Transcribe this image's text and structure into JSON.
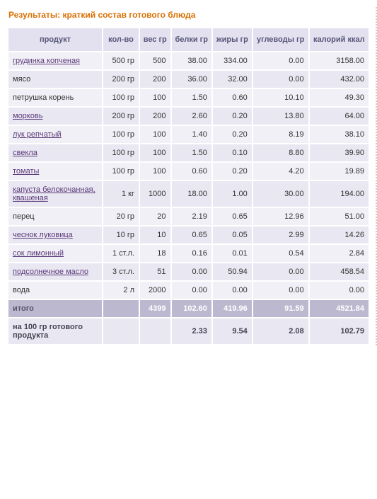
{
  "title": "Результаты: краткий состав готового блюда",
  "columns": {
    "product": "продукт",
    "qty": "кол-во",
    "weight": "вес гр",
    "protein": "белки гр",
    "fat": "жиры гр",
    "carbs": "углеводы гр",
    "kcal": "калорий ккал"
  },
  "rows": [
    {
      "name": "грудинка копченая",
      "link": true,
      "qty": "500 гр",
      "weight": "500",
      "protein": "38.00",
      "fat": "334.00",
      "carbs": "0.00",
      "kcal": "3158.00"
    },
    {
      "name": "мясо",
      "link": false,
      "qty": "200 гр",
      "weight": "200",
      "protein": "36.00",
      "fat": "32.00",
      "carbs": "0.00",
      "kcal": "432.00"
    },
    {
      "name": "петрушка корень",
      "link": false,
      "qty": "100 гр",
      "weight": "100",
      "protein": "1.50",
      "fat": "0.60",
      "carbs": "10.10",
      "kcal": "49.30"
    },
    {
      "name": "морковь",
      "link": true,
      "qty": "200 гр",
      "weight": "200",
      "protein": "2.60",
      "fat": "0.20",
      "carbs": "13.80",
      "kcal": "64.00"
    },
    {
      "name": "лук репчатый",
      "link": true,
      "qty": "100 гр",
      "weight": "100",
      "protein": "1.40",
      "fat": "0.20",
      "carbs": "8.19",
      "kcal": "38.10"
    },
    {
      "name": "свекла",
      "link": true,
      "qty": "100 гр",
      "weight": "100",
      "protein": "1.50",
      "fat": "0.10",
      "carbs": "8.80",
      "kcal": "39.90"
    },
    {
      "name": "томаты",
      "link": true,
      "qty": "100 гр",
      "weight": "100",
      "protein": "0.60",
      "fat": "0.20",
      "carbs": "4.20",
      "kcal": "19.89"
    },
    {
      "name": "капуста белокочанная, квашеная",
      "link": true,
      "qty": "1 кг",
      "weight": "1000",
      "protein": "18.00",
      "fat": "1.00",
      "carbs": "30.00",
      "kcal": "194.00"
    },
    {
      "name": "перец",
      "link": false,
      "qty": "20 гр",
      "weight": "20",
      "protein": "2.19",
      "fat": "0.65",
      "carbs": "12.96",
      "kcal": "51.00"
    },
    {
      "name": "чеснок луковица",
      "link": true,
      "qty": "10 гр",
      "weight": "10",
      "protein": "0.65",
      "fat": "0.05",
      "carbs": "2.99",
      "kcal": "14.26"
    },
    {
      "name": "сок лимонный",
      "link": true,
      "qty": "1 ст.л.",
      "weight": "18",
      "protein": "0.16",
      "fat": "0.01",
      "carbs": "0.54",
      "kcal": "2.84"
    },
    {
      "name": "подсолнечное масло",
      "link": true,
      "qty": "3 ст.л.",
      "weight": "51",
      "protein": "0.00",
      "fat": "50.94",
      "carbs": "0.00",
      "kcal": "458.54"
    },
    {
      "name": "вода",
      "link": false,
      "qty": "2 л",
      "weight": "2000",
      "protein": "0.00",
      "fat": "0.00",
      "carbs": "0.00",
      "kcal": "0.00"
    }
  ],
  "total": {
    "label": "итого",
    "weight": "4399",
    "protein": "102.60",
    "fat": "419.96",
    "carbs": "91.59",
    "kcal": "4521.84"
  },
  "per100": {
    "label": "на 100 гр готового продукта",
    "protein": "2.33",
    "fat": "9.54",
    "carbs": "2.08",
    "kcal": "102.79"
  },
  "colors": {
    "title": "#d96f00",
    "header_bg": "#e3e0ef",
    "row_bg": "#f1f0f6",
    "row_alt_bg": "#e9e7f1",
    "total_bg": "#bcb8cf",
    "link": "#5b3a7a",
    "border": "#ffffff"
  }
}
